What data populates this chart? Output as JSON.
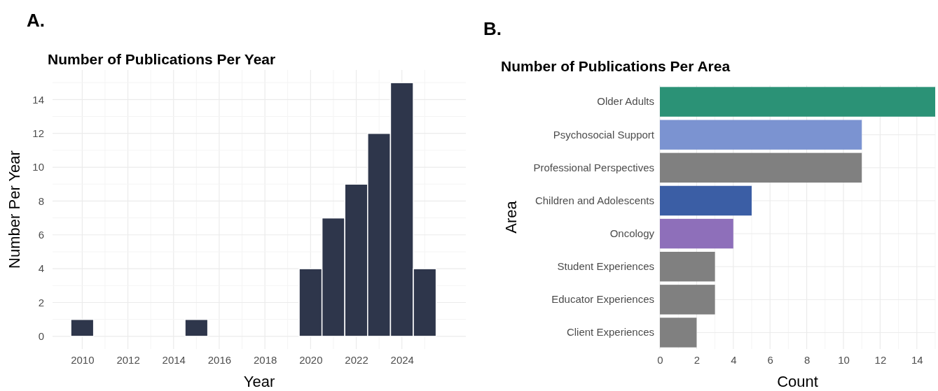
{
  "chart_data": [
    {
      "type": "bar",
      "title": "Number of Publications Per Year",
      "xlabel": "Year",
      "ylabel": "Number Per Year",
      "annotations": [
        "A."
      ],
      "x": [
        2010,
        2015,
        2020,
        2021,
        2022,
        2023,
        2024,
        2025
      ],
      "values": [
        1,
        1,
        4,
        7,
        9,
        12,
        15,
        4
      ],
      "color": "#2e364b",
      "xlim": [
        2008.7,
        2026.8
      ],
      "xticks": [
        2010,
        2012,
        2014,
        2016,
        2018,
        2020,
        2022,
        2024
      ],
      "ylim": [
        -0.75,
        15.75
      ],
      "yticks": [
        0,
        2,
        4,
        6,
        8,
        10,
        12,
        14
      ],
      "grid": true
    },
    {
      "type": "bar",
      "orientation": "horizontal",
      "title": "Number of Publications Per Area",
      "xlabel": "Count",
      "ylabel": "Area",
      "annotations": [
        "B."
      ],
      "categories": [
        "Older Adults",
        "Psychosocial Support",
        "Professional Perspectives",
        "Children and Adolescents",
        "Oncology",
        "Student Experiences",
        "Educator Experiences",
        "Client Experiences"
      ],
      "values": [
        15,
        11,
        11,
        5,
        4,
        3,
        3,
        2
      ],
      "colors": [
        "#2b9276",
        "#7b93d1",
        "#808080",
        "#3b5ea5",
        "#8e6fba",
        "#808080",
        "#808080",
        "#808080"
      ],
      "xlim": [
        0,
        15
      ],
      "xticks": [
        0,
        2,
        4,
        6,
        8,
        10,
        12,
        14
      ],
      "grid": true
    }
  ]
}
